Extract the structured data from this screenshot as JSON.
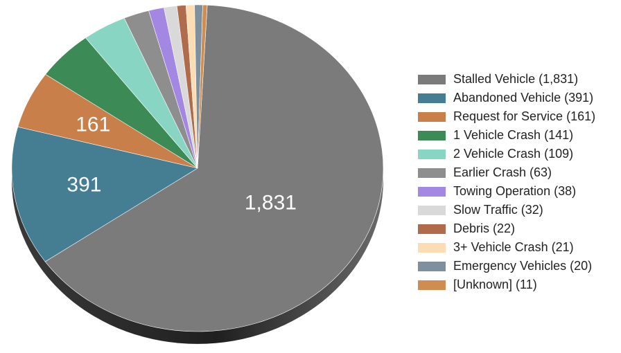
{
  "chart_data": {
    "type": "pie",
    "title": "",
    "slices": [
      {
        "label": "Stalled Vehicle",
        "value": 1831,
        "legend": "Stalled Vehicle (1,831)",
        "color": "#7b7b7b",
        "data_label": "1,831"
      },
      {
        "label": "Abandoned Vehicle",
        "value": 391,
        "legend": "Abandoned Vehicle (391)",
        "color": "#457d92",
        "data_label": "391"
      },
      {
        "label": "Request for Service",
        "value": 161,
        "legend": "Request for Service (161)",
        "color": "#c97f4a",
        "data_label": "161"
      },
      {
        "label": "1 Vehicle Crash",
        "value": 141,
        "legend": "1 Vehicle Crash (141)",
        "color": "#3c8a55",
        "data_label": ""
      },
      {
        "label": "2 Vehicle Crash",
        "value": 109,
        "legend": "2 Vehicle Crash (109)",
        "color": "#88d5c3",
        "data_label": ""
      },
      {
        "label": "Earlier Crash",
        "value": 63,
        "legend": "Earlier Crash (63)",
        "color": "#8e8e8e",
        "data_label": ""
      },
      {
        "label": "Towing Operation",
        "value": 38,
        "legend": "Towing Operation (38)",
        "color": "#a486e3",
        "data_label": ""
      },
      {
        "label": "Slow Traffic",
        "value": 32,
        "legend": "Slow Traffic (32)",
        "color": "#d9d9d9",
        "data_label": ""
      },
      {
        "label": "Debris",
        "value": 22,
        "legend": "Debris (22)",
        "color": "#b06a4c",
        "data_label": ""
      },
      {
        "label": "3+ Vehicle Crash",
        "value": 21,
        "legend": "3+ Vehicle Crash (21)",
        "color": "#fcdcb3",
        "data_label": ""
      },
      {
        "label": "Emergency Vehicles",
        "value": 20,
        "legend": "Emergency Vehicles (20)",
        "color": "#7e909e",
        "data_label": ""
      },
      {
        "label": "[Unknown]",
        "value": 11,
        "legend": "[Unknown] (11)",
        "color": "#cf8d52",
        "data_label": ""
      }
    ],
    "legend_position": "right"
  }
}
